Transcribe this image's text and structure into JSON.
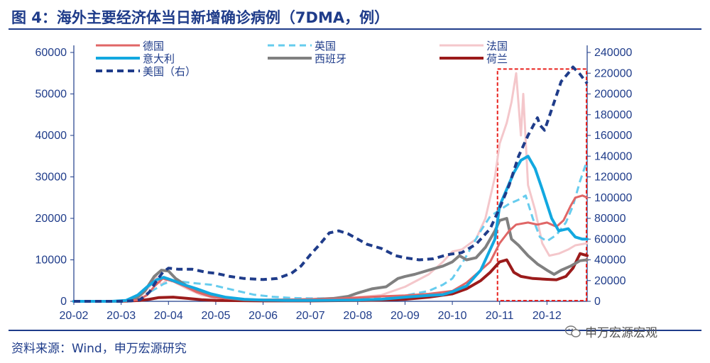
{
  "header": {
    "title": "图 4：海外主要经济体当日新增确诊病例（7DMA，例）"
  },
  "footer": {
    "source": "资料来源：Wind，申万宏源研究",
    "watermark": "申万宏源宏观"
  },
  "chart_data": {
    "type": "line",
    "x_labels": [
      "20-02",
      "20-03",
      "20-04",
      "20-05",
      "20-06",
      "20-07",
      "20-08",
      "20-09",
      "20-10",
      "20-11",
      "20-12"
    ],
    "x_unit": "months since 2020-02-01",
    "xlim": [
      0,
      10.85
    ],
    "y_left": {
      "lim": [
        0,
        60000
      ],
      "ticks": [
        "0",
        "10000",
        "20000",
        "30000",
        "40000",
        "50000",
        "60000"
      ]
    },
    "y_right": {
      "lim": [
        0,
        240000
      ],
      "ticks": [
        "0",
        "20000",
        "40000",
        "60000",
        "80000",
        "100000",
        "120000",
        "140000",
        "160000",
        "180000",
        "200000",
        "220000",
        "240000"
      ]
    },
    "highlight_box": {
      "x_range": [
        9.0,
        10.85
      ],
      "y_range": [
        0,
        56000
      ],
      "style": "red dashed"
    },
    "series": [
      {
        "name": "德国",
        "color": "#e06666",
        "dash": "solid",
        "width": 3,
        "axis": "left",
        "points": [
          [
            0,
            0
          ],
          [
            1,
            0
          ],
          [
            1.35,
            300
          ],
          [
            1.55,
            1500
          ],
          [
            1.7,
            3600
          ],
          [
            1.88,
            5500
          ],
          [
            2.1,
            4800
          ],
          [
            2.35,
            3600
          ],
          [
            2.6,
            2200
          ],
          [
            2.9,
            1100
          ],
          [
            3.2,
            700
          ],
          [
            3.6,
            500
          ],
          [
            4.0,
            400
          ],
          [
            4.5,
            400
          ],
          [
            5.0,
            500
          ],
          [
            5.5,
            600
          ],
          [
            6.0,
            900
          ],
          [
            6.5,
            1200
          ],
          [
            7.0,
            1400
          ],
          [
            7.5,
            1800
          ],
          [
            8.0,
            2500
          ],
          [
            8.3,
            4500
          ],
          [
            8.5,
            6500
          ],
          [
            8.8,
            9500
          ],
          [
            9.0,
            14000
          ],
          [
            9.2,
            17000
          ],
          [
            9.35,
            18500
          ],
          [
            9.6,
            19000
          ],
          [
            9.8,
            18500
          ],
          [
            10.0,
            19000
          ],
          [
            10.2,
            18000
          ],
          [
            10.35,
            19500
          ],
          [
            10.5,
            23000
          ],
          [
            10.6,
            25000
          ],
          [
            10.75,
            25500
          ],
          [
            10.85,
            25000
          ]
        ]
      },
      {
        "name": "英国",
        "color": "#66ccee",
        "dash": "dashed",
        "width": 3,
        "axis": "left",
        "points": [
          [
            0,
            0
          ],
          [
            1,
            0
          ],
          [
            1.45,
            800
          ],
          [
            1.65,
            2500
          ],
          [
            1.9,
            4200
          ],
          [
            2.1,
            5000
          ],
          [
            2.3,
            4700
          ],
          [
            2.6,
            4300
          ],
          [
            2.9,
            4000
          ],
          [
            3.2,
            3200
          ],
          [
            3.5,
            2400
          ],
          [
            3.8,
            1600
          ],
          [
            4.2,
            1100
          ],
          [
            4.6,
            800
          ],
          [
            5.0,
            700
          ],
          [
            5.5,
            700
          ],
          [
            6.0,
            800
          ],
          [
            6.5,
            1000
          ],
          [
            7.0,
            1400
          ],
          [
            7.5,
            2500
          ],
          [
            7.8,
            4000
          ],
          [
            8.0,
            5500
          ],
          [
            8.2,
            9000
          ],
          [
            8.4,
            13000
          ],
          [
            8.6,
            17000
          ],
          [
            8.8,
            20500
          ],
          [
            9.0,
            22000
          ],
          [
            9.2,
            23500
          ],
          [
            9.4,
            24500
          ],
          [
            9.55,
            25500
          ],
          [
            9.7,
            20000
          ],
          [
            9.85,
            15500
          ],
          [
            10.0,
            14500
          ],
          [
            10.2,
            16000
          ],
          [
            10.4,
            19000
          ],
          [
            10.55,
            23000
          ],
          [
            10.7,
            29000
          ],
          [
            10.85,
            34000
          ]
        ]
      },
      {
        "name": "法国",
        "color": "#f4c7cb",
        "dash": "solid",
        "width": 3,
        "axis": "left",
        "points": [
          [
            0,
            0
          ],
          [
            1,
            0
          ],
          [
            1.4,
            1000
          ],
          [
            1.6,
            3500
          ],
          [
            1.75,
            5800
          ],
          [
            1.85,
            4000
          ],
          [
            2.0,
            5500
          ],
          [
            2.2,
            4200
          ],
          [
            2.4,
            3000
          ],
          [
            2.7,
            1500
          ],
          [
            3.0,
            800
          ],
          [
            3.4,
            400
          ],
          [
            3.8,
            300
          ],
          [
            4.2,
            400
          ],
          [
            4.6,
            500
          ],
          [
            5.0,
            600
          ],
          [
            5.5,
            800
          ],
          [
            6.0,
            1000
          ],
          [
            6.5,
            1500
          ],
          [
            7.0,
            3500
          ],
          [
            7.5,
            6500
          ],
          [
            7.8,
            9500
          ],
          [
            8.0,
            12000
          ],
          [
            8.2,
            12500
          ],
          [
            8.5,
            15000
          ],
          [
            8.7,
            20000
          ],
          [
            8.9,
            30000
          ],
          [
            9.0,
            38000
          ],
          [
            9.15,
            43000
          ],
          [
            9.25,
            48000
          ],
          [
            9.35,
            55000
          ],
          [
            9.45,
            40000
          ],
          [
            9.5,
            50000
          ],
          [
            9.6,
            28000
          ],
          [
            9.75,
            22000
          ],
          [
            9.9,
            14000
          ],
          [
            10.05,
            11000
          ],
          [
            10.25,
            11500
          ],
          [
            10.45,
            12500
          ],
          [
            10.6,
            13500
          ],
          [
            10.85,
            14000
          ]
        ]
      },
      {
        "name": "意大利",
        "color": "#12a8e0",
        "dash": "solid",
        "width": 4,
        "axis": "left",
        "points": [
          [
            0,
            0
          ],
          [
            0.8,
            0
          ],
          [
            1.1,
            200
          ],
          [
            1.35,
            1500
          ],
          [
            1.55,
            3500
          ],
          [
            1.75,
            5200
          ],
          [
            1.9,
            5800
          ],
          [
            2.1,
            5000
          ],
          [
            2.3,
            4100
          ],
          [
            2.6,
            3000
          ],
          [
            2.9,
            1800
          ],
          [
            3.2,
            1000
          ],
          [
            3.6,
            500
          ],
          [
            4.0,
            300
          ],
          [
            4.5,
            200
          ],
          [
            5.0,
            200
          ],
          [
            5.5,
            250
          ],
          [
            6.0,
            300
          ],
          [
            6.5,
            500
          ],
          [
            7.0,
            1000
          ],
          [
            7.5,
            1400
          ],
          [
            7.8,
            1600
          ],
          [
            8.0,
            2300
          ],
          [
            8.3,
            3700
          ],
          [
            8.6,
            7500
          ],
          [
            8.9,
            15000
          ],
          [
            9.0,
            23000
          ],
          [
            9.15,
            27000
          ],
          [
            9.3,
            31000
          ],
          [
            9.45,
            34000
          ],
          [
            9.6,
            35000
          ],
          [
            9.75,
            32000
          ],
          [
            9.9,
            27000
          ],
          [
            10.1,
            20000
          ],
          [
            10.25,
            17000
          ],
          [
            10.45,
            17500
          ],
          [
            10.6,
            15500
          ],
          [
            10.75,
            15000
          ],
          [
            10.85,
            15000
          ]
        ]
      },
      {
        "name": "西班牙",
        "color": "#808080",
        "dash": "solid",
        "width": 4,
        "axis": "left",
        "points": [
          [
            0,
            0
          ],
          [
            1,
            0
          ],
          [
            1.3,
            500
          ],
          [
            1.5,
            2500
          ],
          [
            1.7,
            6000
          ],
          [
            1.85,
            7500
          ],
          [
            2.0,
            7300
          ],
          [
            2.15,
            5500
          ],
          [
            2.35,
            4000
          ],
          [
            2.6,
            2500
          ],
          [
            2.9,
            1500
          ],
          [
            3.2,
            800
          ],
          [
            3.6,
            400
          ],
          [
            4.0,
            300
          ],
          [
            4.5,
            300
          ],
          [
            5.0,
            400
          ],
          [
            5.5,
            700
          ],
          [
            5.8,
            1200
          ],
          [
            6.0,
            2000
          ],
          [
            6.3,
            3000
          ],
          [
            6.6,
            3500
          ],
          [
            6.85,
            5500
          ],
          [
            7.0,
            6000
          ],
          [
            7.2,
            6500
          ],
          [
            7.5,
            7500
          ],
          [
            7.8,
            8500
          ],
          [
            8.0,
            9500
          ],
          [
            8.15,
            11000
          ],
          [
            8.3,
            10000
          ],
          [
            8.5,
            10500
          ],
          [
            8.7,
            13000
          ],
          [
            8.9,
            17000
          ],
          [
            9.0,
            19500
          ],
          [
            9.15,
            20000
          ],
          [
            9.25,
            15000
          ],
          [
            9.4,
            13500
          ],
          [
            9.6,
            11000
          ],
          [
            9.8,
            9000
          ],
          [
            10.0,
            7500
          ],
          [
            10.15,
            6500
          ],
          [
            10.3,
            7500
          ],
          [
            10.5,
            8500
          ],
          [
            10.7,
            9800
          ],
          [
            10.85,
            10000
          ]
        ]
      },
      {
        "name": "荷兰",
        "color": "#9b1b1b",
        "dash": "solid",
        "width": 4,
        "axis": "left",
        "points": [
          [
            0,
            0
          ],
          [
            1,
            0
          ],
          [
            1.4,
            200
          ],
          [
            1.6,
            500
          ],
          [
            1.8,
            900
          ],
          [
            2.1,
            1000
          ],
          [
            2.4,
            700
          ],
          [
            2.7,
            400
          ],
          [
            3.0,
            200
          ],
          [
            4.0,
            100
          ],
          [
            5.0,
            100
          ],
          [
            6.0,
            200
          ],
          [
            6.5,
            300
          ],
          [
            7.0,
            500
          ],
          [
            7.5,
            1000
          ],
          [
            8.0,
            1800
          ],
          [
            8.3,
            3000
          ],
          [
            8.6,
            5000
          ],
          [
            8.8,
            7000
          ],
          [
            9.0,
            9500
          ],
          [
            9.15,
            10000
          ],
          [
            9.3,
            7000
          ],
          [
            9.45,
            6000
          ],
          [
            9.7,
            5500
          ],
          [
            10.0,
            5300
          ],
          [
            10.2,
            5200
          ],
          [
            10.4,
            6000
          ],
          [
            10.55,
            8000
          ],
          [
            10.7,
            11500
          ],
          [
            10.85,
            11000
          ]
        ]
      },
      {
        "name": "美国（右）",
        "color": "#1f3c8a",
        "dash": "dashed",
        "width": 4,
        "axis": "right",
        "points": [
          [
            0,
            0
          ],
          [
            1,
            0
          ],
          [
            1.2,
            400
          ],
          [
            1.4,
            1500
          ],
          [
            1.6,
            9000
          ],
          [
            1.75,
            20000
          ],
          [
            1.88,
            28000
          ],
          [
            2.0,
            32000
          ],
          [
            2.2,
            31000
          ],
          [
            2.5,
            31000
          ],
          [
            2.8,
            28000
          ],
          [
            3.0,
            27000
          ],
          [
            3.3,
            24000
          ],
          [
            3.6,
            22000
          ],
          [
            4.0,
            21000
          ],
          [
            4.3,
            22000
          ],
          [
            4.6,
            27000
          ],
          [
            4.8,
            34000
          ],
          [
            5.0,
            45000
          ],
          [
            5.2,
            55000
          ],
          [
            5.4,
            66000
          ],
          [
            5.6,
            68000
          ],
          [
            5.8,
            65000
          ],
          [
            6.0,
            60000
          ],
          [
            6.2,
            55000
          ],
          [
            6.5,
            51000
          ],
          [
            6.8,
            44000
          ],
          [
            7.0,
            42000
          ],
          [
            7.3,
            40000
          ],
          [
            7.6,
            41000
          ],
          [
            7.9,
            45000
          ],
          [
            8.2,
            47000
          ],
          [
            8.5,
            55000
          ],
          [
            8.8,
            70000
          ],
          [
            9.0,
            90000
          ],
          [
            9.2,
            112000
          ],
          [
            9.4,
            140000
          ],
          [
            9.6,
            160000
          ],
          [
            9.8,
            177000
          ],
          [
            9.85,
            170000
          ],
          [
            9.95,
            165000
          ],
          [
            10.1,
            185000
          ],
          [
            10.3,
            212000
          ],
          [
            10.45,
            220000
          ],
          [
            10.55,
            226000
          ],
          [
            10.7,
            219000
          ],
          [
            10.85,
            210000
          ]
        ]
      }
    ]
  }
}
